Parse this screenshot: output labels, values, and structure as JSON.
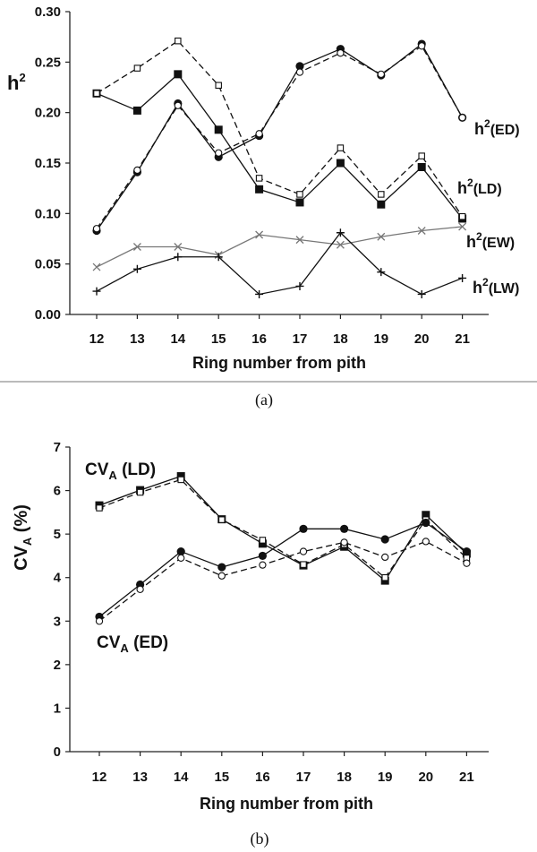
{
  "chart_data": [
    {
      "type": "line",
      "panel_label": "(a)",
      "xlabel": "Ring number from pith",
      "ylabel": {
        "main": "h",
        "sup": "2"
      },
      "x": [
        12,
        13,
        14,
        15,
        16,
        17,
        18,
        19,
        20,
        21
      ],
      "ylim": [
        0,
        0.3
      ],
      "yticks": [
        "0.00",
        "0.05",
        "0.10",
        "0.15",
        "0.20",
        "0.25",
        "0.30"
      ],
      "series": [
        {
          "key": "ed_solid",
          "marker": "filled-circle",
          "line": "solid",
          "values": [
            0.083,
            0.141,
            0.209,
            0.156,
            0.177,
            0.246,
            0.263,
            0.237,
            0.268,
            0.195
          ]
        },
        {
          "key": "ed_open",
          "marker": "open-circle",
          "line": "dashed",
          "values": [
            0.085,
            0.143,
            0.207,
            0.16,
            0.179,
            0.24,
            0.259,
            0.238,
            0.266,
            0.195
          ]
        },
        {
          "key": "ld_solid",
          "marker": "filled-square",
          "line": "solid",
          "values": [
            0.219,
            0.202,
            0.238,
            0.183,
            0.124,
            0.111,
            0.15,
            0.109,
            0.146,
            0.095
          ]
        },
        {
          "key": "ld_open",
          "marker": "open-square",
          "line": "dashed",
          "values": [
            0.219,
            0.244,
            0.271,
            0.227,
            0.135,
            0.119,
            0.165,
            0.119,
            0.157,
            0.097
          ]
        },
        {
          "key": "ew",
          "marker": "x",
          "line": "solid",
          "values": [
            0.047,
            0.067,
            0.067,
            0.059,
            0.079,
            0.074,
            0.069,
            0.077,
            0.083,
            0.087
          ]
        },
        {
          "key": "lw",
          "marker": "plus",
          "line": "solid",
          "values": [
            0.023,
            0.045,
            0.057,
            0.057,
            0.02,
            0.028,
            0.081,
            0.042,
            0.02,
            0.036
          ]
        }
      ],
      "annotations": [
        {
          "main": "h",
          "sup": "2",
          "tail": "(ED)"
        },
        {
          "main": "h",
          "sup": "2",
          "tail": "(LD)"
        },
        {
          "main": "h",
          "sup": "2",
          "tail": "(EW)"
        },
        {
          "main": "h",
          "sup": "2",
          "tail": "(LW)"
        }
      ]
    },
    {
      "type": "line",
      "panel_label": "(b)",
      "xlabel": "Ring number from pith",
      "ylabel": {
        "main": "CV",
        "sub": "A",
        "tail": " (%)"
      },
      "x": [
        12,
        13,
        14,
        15,
        16,
        17,
        18,
        19,
        20,
        21
      ],
      "ylim": [
        0,
        7
      ],
      "yticks": [
        "0",
        "1",
        "2",
        "3",
        "4",
        "5",
        "6",
        "7"
      ],
      "series": [
        {
          "key": "ld_solid",
          "marker": "filled-square",
          "line": "solid",
          "values": [
            5.66,
            6.01,
            6.33,
            5.34,
            4.78,
            4.28,
            4.71,
            3.93,
            5.44,
            4.55
          ]
        },
        {
          "key": "ld_open",
          "marker": "open-square",
          "line": "dashed",
          "values": [
            5.6,
            5.96,
            6.25,
            5.33,
            4.86,
            4.3,
            4.76,
            4.0,
            5.33,
            4.45
          ]
        },
        {
          "key": "ed_solid",
          "marker": "filled-circle",
          "line": "solid",
          "values": [
            3.1,
            3.84,
            4.6,
            4.24,
            4.5,
            5.12,
            5.12,
            4.88,
            5.26,
            4.6
          ]
        },
        {
          "key": "ed_open",
          "marker": "open-circle",
          "line": "dashed",
          "values": [
            3.0,
            3.73,
            4.45,
            4.04,
            4.29,
            4.6,
            4.81,
            4.47,
            4.83,
            4.33
          ]
        }
      ],
      "annotations": [
        {
          "main": "CV",
          "sub": "A",
          "tail": " (LD)"
        },
        {
          "main": "CV",
          "sub": "A",
          "tail": " (ED)"
        }
      ]
    }
  ]
}
